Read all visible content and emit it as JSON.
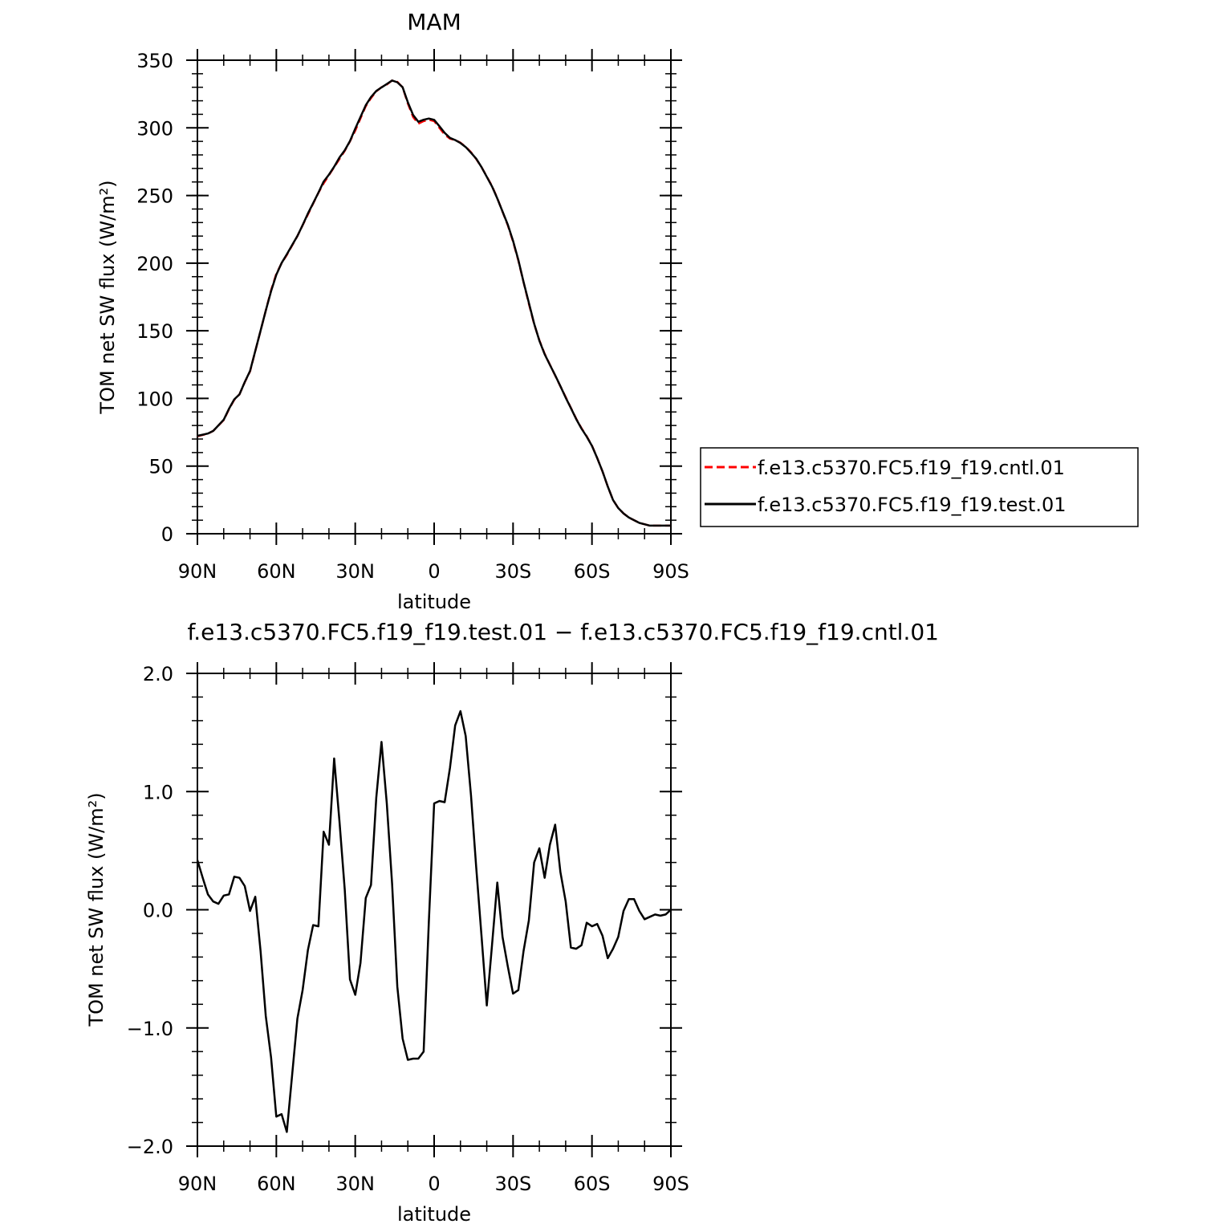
{
  "chart_data": [
    {
      "type": "line",
      "title": "MAM",
      "xlabel": "latitude",
      "ylabel": "TOM net SW flux (W/m²)",
      "ylim": [
        0,
        350
      ],
      "xlim": [
        90,
        -90
      ],
      "yticks": [
        "0",
        "50",
        "100",
        "150",
        "200",
        "250",
        "300",
        "350"
      ],
      "xtick_values": [
        90,
        60,
        30,
        0,
        -30,
        -60,
        -90
      ],
      "xtick_labels": [
        "90N",
        "60N",
        "30N",
        "0",
        "30S",
        "60S",
        "90S"
      ],
      "legend_position": "right",
      "x": [
        90,
        88,
        86,
        84,
        82,
        80,
        78,
        76,
        74,
        72,
        70,
        68,
        66,
        64,
        62,
        60,
        58,
        56,
        54,
        52,
        50,
        48,
        46,
        44,
        42,
        40,
        38,
        36,
        34,
        32,
        30,
        28,
        26,
        24,
        22,
        20,
        18,
        16,
        14,
        12,
        10,
        8,
        6,
        4,
        2,
        0,
        -2,
        -4,
        -6,
        -8,
        -10,
        -12,
        -14,
        -16,
        -18,
        -20,
        -22,
        -24,
        -26,
        -28,
        -30,
        -32,
        -34,
        -36,
        -38,
        -40,
        -42,
        -44,
        -46,
        -48,
        -50,
        -52,
        -54,
        -56,
        -58,
        -60,
        -62,
        -64,
        -66,
        -68,
        -70,
        -72,
        -74,
        -76,
        -78,
        -80,
        -82,
        -84,
        -86,
        -88,
        -90
      ],
      "series": [
        {
          "name": "f.e13.c5370.FC5.f19_f19.cntl.01",
          "color": "#ff0000",
          "dash": true,
          "values": [
            72,
            73,
            74,
            76,
            80,
            84,
            92,
            99,
            103,
            112,
            120,
            135,
            150,
            165,
            180,
            192,
            200,
            206,
            213,
            220,
            228,
            236,
            244,
            252,
            259,
            265,
            271,
            277,
            283,
            290,
            298,
            307,
            316,
            322,
            327,
            330,
            332,
            335,
            334,
            330,
            318,
            308,
            303,
            305,
            306,
            305,
            300,
            295,
            292,
            291,
            289,
            286,
            282,
            277,
            271,
            264,
            257,
            248,
            238,
            228,
            216,
            202,
            186,
            170,
            155,
            143,
            133,
            125,
            117,
            109,
            101,
            93,
            85,
            78,
            72,
            65,
            56,
            46,
            35,
            25,
            19,
            15,
            12,
            10,
            8,
            7,
            6,
            6,
            6,
            6,
            6
          ]
        },
        {
          "name": "f.e13.c5370.FC5.f19_f19.test.01",
          "color": "#000000",
          "dash": false,
          "values": [
            72.4,
            73.2,
            74.1,
            76.0,
            80.1,
            84.3,
            92.3,
            99.3,
            103.0,
            112.1,
            120.3,
            135.1,
            150.1,
            165.0,
            179.3,
            191.4,
            200.1,
            206.5,
            213.3,
            220.1,
            228.1,
            236.7,
            244.3,
            252.1,
            260.3,
            265.4,
            271.3,
            278.1,
            283.4,
            290.2,
            299.4,
            308.0,
            316.7,
            322.8,
            327.3,
            329.9,
            332.4,
            335.0,
            333.7,
            330.0,
            318.9,
            309.5,
            304.5,
            306.0,
            306.9,
            305.9,
            301.2,
            296.3,
            292.6,
            291.0,
            288.8,
            285.8,
            281.6,
            277.2,
            271.0,
            263.8,
            256.7,
            247.8,
            238.2,
            228.4,
            216.5,
            202.4,
            186.1,
            170.7,
            155.3,
            142.7,
            132.7,
            124.9,
            117.1,
            109.1,
            100.6,
            92.9,
            84.8,
            77.7,
            71.8,
            64.9,
            55.9,
            46.1,
            35.0,
            25.0,
            19.0,
            15.0,
            12.0,
            10.0,
            8.0,
            7.0,
            6.0,
            6.0,
            6.0,
            6.0,
            6.0
          ]
        }
      ]
    },
    {
      "type": "line",
      "title": "f.e13.c5370.FC5.f19_f19.test.01 − f.e13.c5370.FC5.f19_f19.cntl.01",
      "xlabel": "latitude",
      "ylabel": "TOM net SW flux (W/m²)",
      "ylim": [
        -2.0,
        2.0
      ],
      "xlim": [
        90,
        -90
      ],
      "yticks": [
        "−2.0",
        "−1.0",
        "0.0",
        "1.0",
        "2.0"
      ],
      "xtick_values": [
        90,
        60,
        30,
        0,
        -30,
        -60,
        -90
      ],
      "xtick_labels": [
        "90N",
        "60N",
        "30N",
        "0",
        "30S",
        "60S",
        "90S"
      ],
      "series": [
        {
          "color": "#000000",
          "x": [
            90,
            88,
            86,
            84,
            82,
            80,
            78,
            76,
            74,
            72,
            70,
            68,
            66,
            64,
            62,
            60,
            58,
            56,
            54,
            52,
            50,
            48,
            46,
            44,
            42,
            40,
            38,
            36,
            34,
            32,
            30,
            28,
            26,
            24,
            22,
            20,
            18,
            16,
            14,
            12,
            10,
            8,
            6,
            4,
            2,
            0,
            -2,
            -4,
            -6,
            -8,
            -10,
            -12,
            -14,
            -16,
            -18,
            -20,
            -22,
            -24,
            -26,
            -28,
            -30,
            -32,
            -34,
            -36,
            -38,
            -40,
            -42,
            -44,
            -46,
            -48,
            -50,
            -52,
            -54,
            -56,
            -58,
            -60,
            -62,
            -64,
            -66,
            -68,
            -70,
            -72,
            -74,
            -76,
            -78,
            -80,
            -82,
            -84,
            -86,
            -88,
            -90
          ],
          "values": [
            0.42,
            0.27,
            0.13,
            0.07,
            0.05,
            0.12,
            0.13,
            0.28,
            0.27,
            0.2,
            -0.01,
            0.11,
            -0.35,
            -0.9,
            -1.25,
            -1.75,
            -1.73,
            -1.88,
            -1.4,
            -0.92,
            -0.68,
            -0.34,
            -0.13,
            -0.14,
            0.66,
            0.55,
            1.28,
            0.75,
            0.17,
            -0.59,
            -0.72,
            -0.45,
            0.1,
            0.21,
            0.95,
            1.42,
            0.9,
            0.22,
            -0.65,
            -1.09,
            -1.27,
            -1.26,
            -1.26,
            -1.2,
            -0.1,
            0.9,
            0.92,
            0.91,
            1.2,
            1.56,
            1.68,
            1.47,
            0.97,
            0.36,
            -0.22,
            -0.81,
            -0.3,
            0.23,
            -0.23,
            -0.48,
            -0.71,
            -0.68,
            -0.35,
            -0.09,
            0.4,
            0.52,
            0.27,
            0.55,
            0.72,
            0.32,
            0.07,
            -0.32,
            -0.33,
            -0.3,
            -0.11,
            -0.14,
            -0.12,
            -0.22,
            -0.41,
            -0.33,
            -0.23,
            -0.01,
            0.09,
            0.09,
            -0.01,
            -0.08,
            -0.06,
            -0.04,
            -0.05,
            -0.04,
            0.0
          ]
        }
      ]
    }
  ]
}
